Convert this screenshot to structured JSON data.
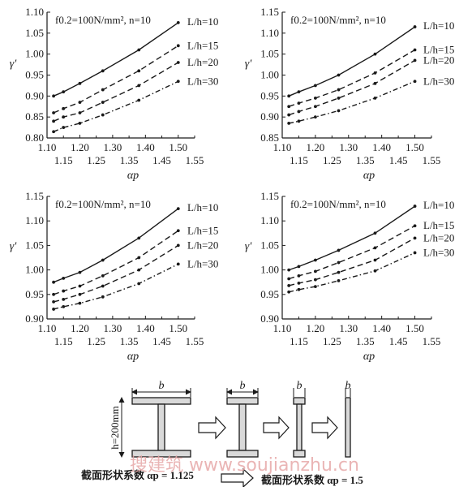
{
  "chart_data": [
    {
      "type": "line",
      "annotation": "f0.2=100N/mm², n=10",
      "xlabel": "αp",
      "ylabel": "γ'",
      "xlim": [
        1.1,
        1.55
      ],
      "ylim": [
        0.8,
        1.1
      ],
      "yticks": [
        "0.80",
        "0.85",
        "0.90",
        "0.95",
        "1.00",
        "1.05",
        "1.10"
      ],
      "xticks_top": [
        "1.10",
        "1.20",
        "1.30",
        "1.40",
        "1.50"
      ],
      "xticks_bottom": [
        "1.15",
        "1.25",
        "1.35",
        "1.45",
        "1.55"
      ],
      "x": [
        1.12,
        1.15,
        1.2,
        1.27,
        1.38,
        1.5
      ],
      "series": [
        {
          "name": "L/h=10",
          "style": "solid",
          "values": [
            0.9,
            0.91,
            0.93,
            0.96,
            1.01,
            1.075
          ]
        },
        {
          "name": "L/h=15",
          "style": "dashed",
          "values": [
            0.86,
            0.87,
            0.885,
            0.915,
            0.96,
            1.02
          ]
        },
        {
          "name": "L/h=20",
          "style": "dashed",
          "values": [
            0.84,
            0.85,
            0.86,
            0.885,
            0.925,
            0.98
          ]
        },
        {
          "name": "L/h=30",
          "style": "dashdot",
          "values": [
            0.815,
            0.825,
            0.835,
            0.855,
            0.89,
            0.935
          ]
        }
      ]
    },
    {
      "type": "line",
      "annotation": "f0.2=100N/mm², n=10",
      "xlabel": "αp",
      "ylabel": "γ'",
      "xlim": [
        1.1,
        1.55
      ],
      "ylim": [
        0.85,
        1.15
      ],
      "yticks": [
        "0.85",
        "0.90",
        "0.95",
        "1.00",
        "1.05",
        "1.10",
        "1.15"
      ],
      "xticks_top": [
        "1.10",
        "1.20",
        "1.30",
        "1.40",
        "1.50"
      ],
      "xticks_bottom": [
        "1.15",
        "1.25",
        "1.35",
        "1.45",
        "1.55"
      ],
      "x": [
        1.12,
        1.15,
        1.2,
        1.27,
        1.38,
        1.5
      ],
      "series": [
        {
          "name": "L/h=10",
          "style": "solid",
          "values": [
            0.95,
            0.96,
            0.975,
            1.0,
            1.05,
            1.115
          ]
        },
        {
          "name": "L/h=15",
          "style": "dashed",
          "values": [
            0.925,
            0.933,
            0.945,
            0.965,
            1.005,
            1.06
          ]
        },
        {
          "name": "L/h=20",
          "style": "dashed",
          "values": [
            0.905,
            0.913,
            0.925,
            0.945,
            0.98,
            1.035
          ]
        },
        {
          "name": "L/h=30",
          "style": "dashdot",
          "values": [
            0.885,
            0.89,
            0.9,
            0.915,
            0.945,
            0.985
          ]
        }
      ]
    },
    {
      "type": "line",
      "annotation": "f0.2=100N/mm², n=10",
      "xlabel": "αp",
      "ylabel": "γ'",
      "xlim": [
        1.1,
        1.55
      ],
      "ylim": [
        0.9,
        1.15
      ],
      "yticks": [
        "0.90",
        "0.95",
        "1.00",
        "1.05",
        "1.10",
        "1.15"
      ],
      "xticks_top": [
        "1.10",
        "1.20",
        "1.30",
        "1.40",
        "1.50"
      ],
      "xticks_bottom": [
        "1.15",
        "1.25",
        "1.35",
        "1.45",
        "1.55"
      ],
      "x": [
        1.12,
        1.15,
        1.2,
        1.27,
        1.38,
        1.5
      ],
      "series": [
        {
          "name": "L/h=10",
          "style": "solid",
          "values": [
            0.975,
            0.983,
            0.995,
            1.02,
            1.065,
            1.125
          ]
        },
        {
          "name": "L/h=15",
          "style": "dashed",
          "values": [
            0.95,
            0.957,
            0.967,
            0.988,
            1.025,
            1.08
          ]
        },
        {
          "name": "L/h=20",
          "style": "dashed",
          "values": [
            0.935,
            0.94,
            0.95,
            0.967,
            1.0,
            1.05
          ]
        },
        {
          "name": "L/h=30",
          "style": "dashdot",
          "values": [
            0.92,
            0.925,
            0.932,
            0.945,
            0.972,
            1.012
          ]
        }
      ]
    },
    {
      "type": "line",
      "annotation": "f0.2=100N/mm², n=10",
      "xlabel": "αp",
      "ylabel": "γ'",
      "xlim": [
        1.1,
        1.55
      ],
      "ylim": [
        0.9,
        1.15
      ],
      "yticks": [
        "0.90",
        "0.95",
        "1.00",
        "1.05",
        "1.10",
        "1.15"
      ],
      "xticks_top": [
        "1.10",
        "1.20",
        "1.30",
        "1.40",
        "1.50"
      ],
      "xticks_bottom": [
        "1.15",
        "1.25",
        "1.35",
        "1.45",
        "1.55"
      ],
      "x": [
        1.12,
        1.15,
        1.2,
        1.27,
        1.38,
        1.5
      ],
      "series": [
        {
          "name": "L/h=10",
          "style": "solid",
          "values": [
            1.0,
            1.007,
            1.02,
            1.04,
            1.075,
            1.13
          ]
        },
        {
          "name": "L/h=15",
          "style": "dashed",
          "values": [
            0.982,
            0.988,
            0.997,
            1.015,
            1.045,
            1.09
          ]
        },
        {
          "name": "L/h=20",
          "style": "dashed",
          "values": [
            0.968,
            0.973,
            0.98,
            0.995,
            1.02,
            1.065
          ]
        },
        {
          "name": "L/h=30",
          "style": "dashdot",
          "values": [
            0.955,
            0.96,
            0.966,
            0.978,
            0.998,
            1.035
          ]
        }
      ]
    }
  ],
  "diagram": {
    "dim_b": "b",
    "dim_h": "h=200mm",
    "caption_left": "截面形状系数 αp = 1.125",
    "caption_right": "截面形状系数 αp = 1.5"
  },
  "watermark": "搜建筑  www.soujianzhu.cn"
}
